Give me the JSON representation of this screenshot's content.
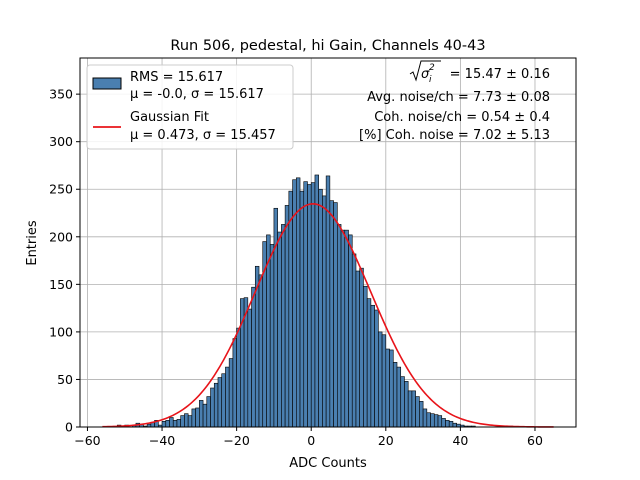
{
  "chart_data": {
    "type": "bar",
    "title": "Run 506, pedestal, hi Gain, Channels 40-43",
    "xlabel": "ADC Counts",
    "ylabel": "Entries",
    "xlim": [
      -62,
      71
    ],
    "ylim": [
      0,
      388
    ],
    "xticks": [
      "−60",
      "−40",
      "−20",
      "0",
      "20",
      "40",
      "60"
    ],
    "xtick_values": [
      -60,
      -40,
      -20,
      0,
      20,
      40,
      60
    ],
    "yticks": [
      "0",
      "50",
      "100",
      "150",
      "200",
      "250",
      "300",
      "350"
    ],
    "ytick_values": [
      0,
      50,
      100,
      150,
      200,
      250,
      300,
      350
    ],
    "grid": true,
    "legend_position": "top-left",
    "bin_width": 1,
    "bins_start": -56,
    "counts": [
      0,
      0,
      0,
      0,
      2,
      0,
      2,
      0,
      2,
      4,
      3,
      1,
      3,
      5,
      7,
      2,
      6,
      7,
      10,
      7,
      8,
      12,
      14,
      12,
      19,
      20,
      28,
      24,
      32,
      41,
      46,
      52,
      56,
      63,
      72,
      93,
      104,
      135,
      136,
      124,
      147,
      169,
      160,
      195,
      202,
      192,
      230,
      205,
      213,
      233,
      248,
      260,
      262,
      248,
      258,
      255,
      257,
      265,
      250,
      243,
      264,
      238,
      236,
      213,
      207,
      207,
      202,
      182,
      164,
      167,
      148,
      135,
      128,
      123,
      100,
      97,
      82,
      81,
      68,
      63,
      53,
      48,
      38,
      38,
      32,
      27,
      19,
      15,
      14,
      13,
      12,
      9,
      7,
      6,
      4,
      3,
      2,
      1,
      1,
      1,
      0,
      0,
      0,
      0,
      0,
      0,
      0,
      0,
      0,
      1,
      0,
      0,
      0,
      0,
      0,
      0,
      0,
      0,
      0,
      0,
      0
    ],
    "series": [
      {
        "name": "RMS = 15.617",
        "name2": "μ = -0.0, σ = 15.617",
        "color": "#4a7fb0",
        "edge": "#000000"
      },
      {
        "name": "Gaussian Fit",
        "name2": "μ = 0.473, σ = 15.457",
        "color": "#e8141a",
        "mu": 0.473,
        "sigma": 15.457
      }
    ],
    "annotations": [
      "= 15.47 ± 0.16",
      "Avg. noise/ch = 7.73 ± 0.08",
      "Coh. noise/ch = 0.54 ± 0.4",
      "[%] Coh. noise = 7.02 ± 5.13"
    ],
    "annotation_symbol": "σ",
    "annotation_symbol_sub": "i",
    "annotation_symbol_sup": "2"
  }
}
